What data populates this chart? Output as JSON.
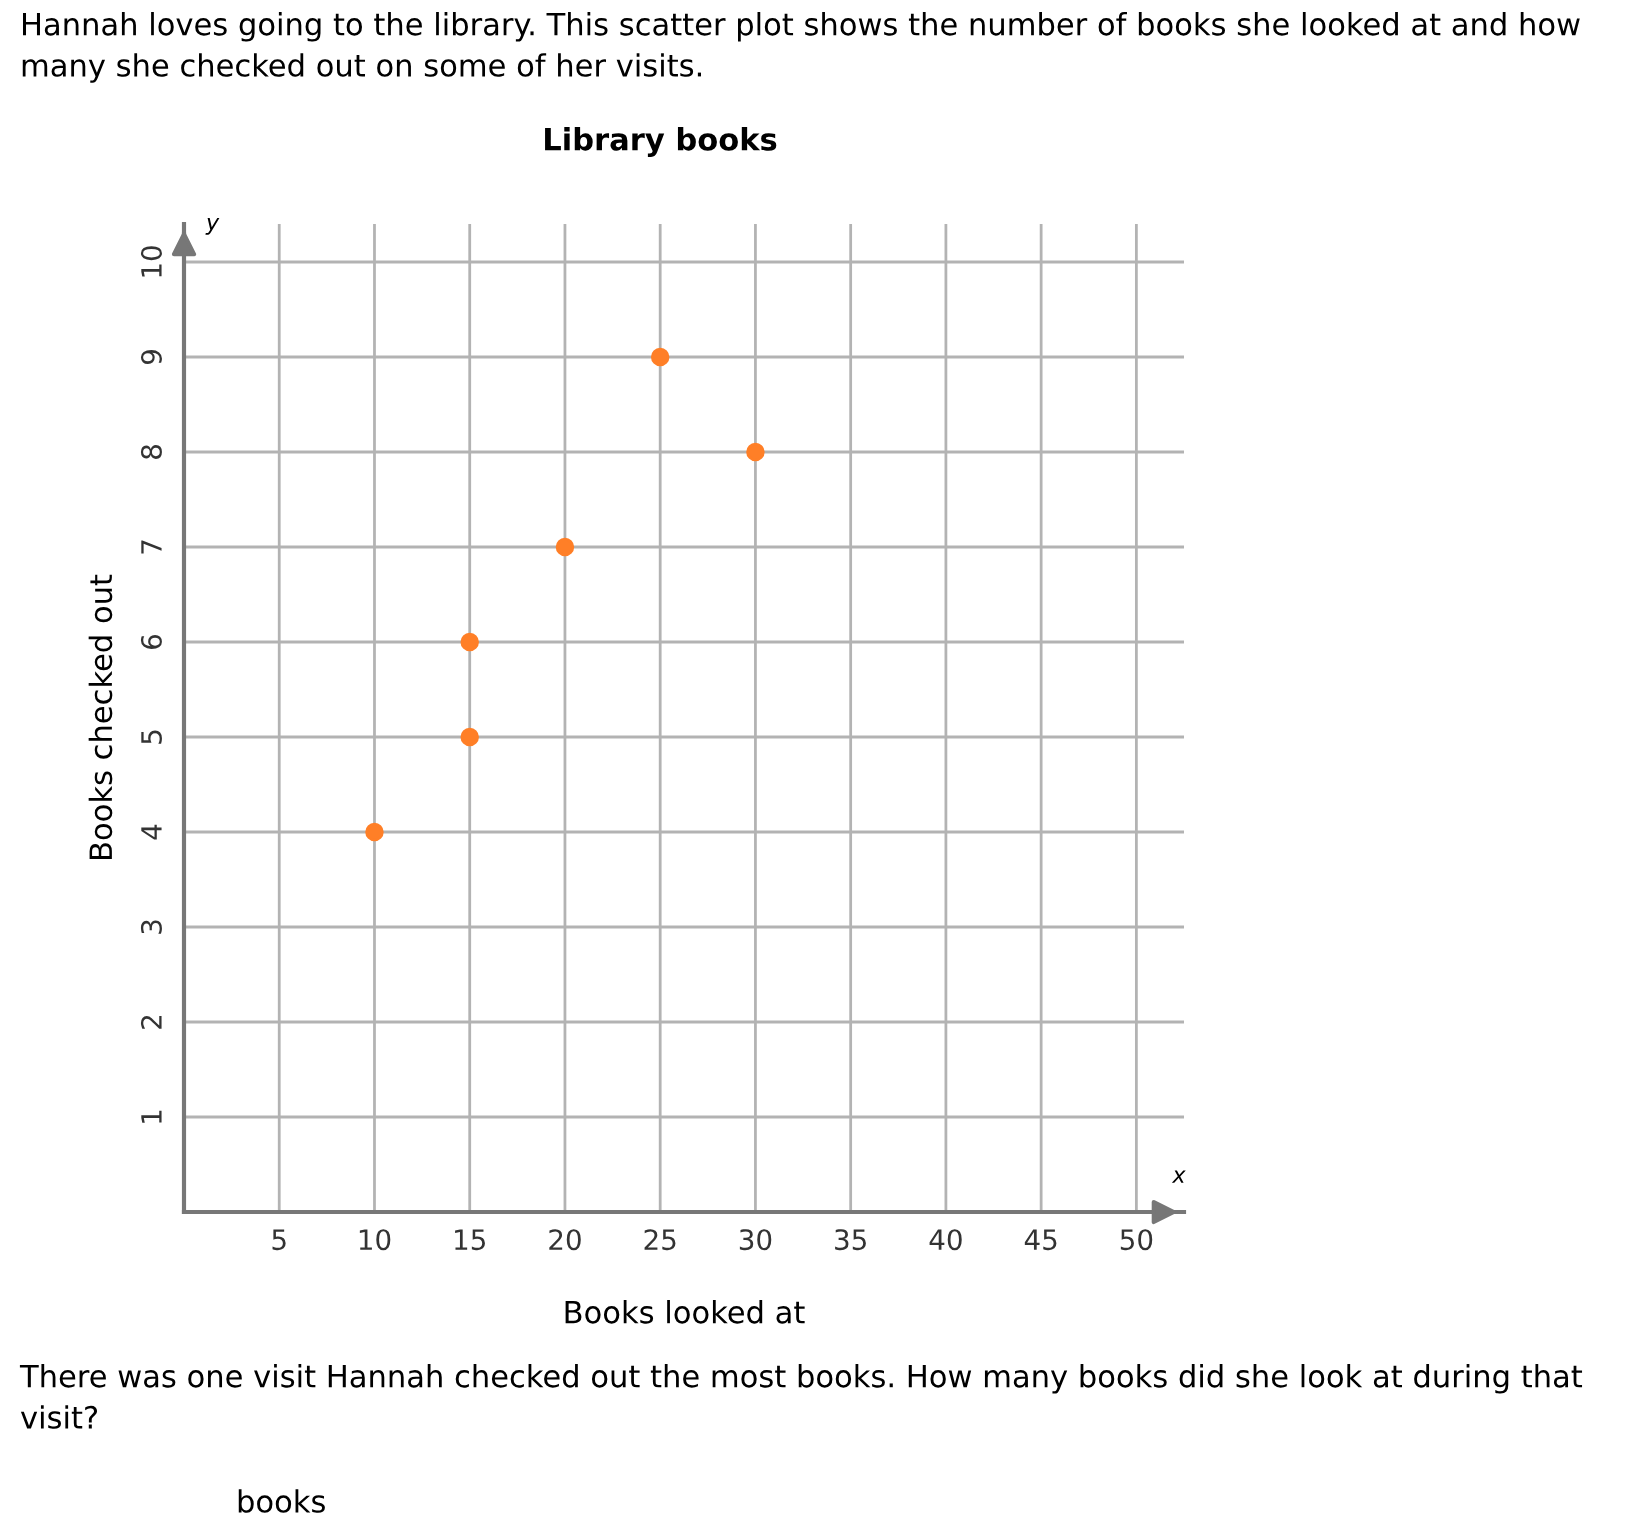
{
  "chart_data": {
    "type": "scatter",
    "title": "Library books",
    "subtitle": "Hannah loves going to the library. This scatter plot shows the number of books she looked at and how many she checked out on some of her visits.",
    "xlabel": "Books looked at",
    "ylabel": "Books checked out",
    "x": [
      10,
      15,
      15,
      20,
      25,
      30
    ],
    "series": [
      {
        "color": "#ff7f27",
        "values": [
          4,
          5,
          6,
          7,
          9,
          8
        ]
      }
    ],
    "xlim": [
      0,
      52.5
    ],
    "ylim": [
      0,
      10.4
    ],
    "xticks": [
      5,
      10,
      15,
      20,
      25,
      30,
      35,
      40,
      45,
      50
    ],
    "yticks": [
      1,
      2,
      3,
      4,
      5,
      6,
      7,
      8,
      9,
      10
    ],
    "grid": true,
    "marker": "circle",
    "legend": false,
    "annotations": [
      "x",
      "y",
      "There was one visit Hannah checked out the most books. How many books did she look at during that visit?",
      "books"
    ]
  }
}
